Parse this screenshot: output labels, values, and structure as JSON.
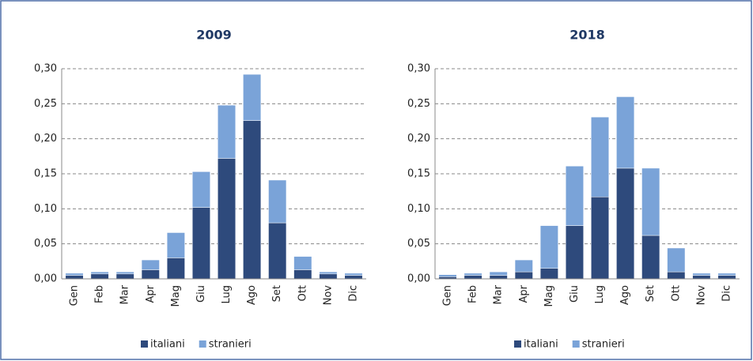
{
  "chart_data": [
    {
      "type": "stacked-bar",
      "title": "2009",
      "categories": [
        "Gen",
        "Feb",
        "Mar",
        "Apr",
        "Mag",
        "Giu",
        "Lug",
        "Ago",
        "Set",
        "Ott",
        "Nov",
        "Dic"
      ],
      "series": [
        {
          "name": "italiani",
          "color": "#2e4a7c",
          "values": [
            0.005,
            0.007,
            0.007,
            0.013,
            0.03,
            0.102,
            0.172,
            0.226,
            0.08,
            0.013,
            0.007,
            0.005
          ]
        },
        {
          "name": "stranieri",
          "color": "#7aa3d8",
          "values": [
            0.003,
            0.003,
            0.003,
            0.014,
            0.036,
            0.051,
            0.076,
            0.066,
            0.061,
            0.019,
            0.003,
            0.003
          ]
        }
      ],
      "ylim": [
        0,
        0.3
      ],
      "yticks": [
        {
          "value": 0,
          "label": "0,00"
        },
        {
          "value": 0.05,
          "label": "0,05"
        },
        {
          "value": 0.1,
          "label": "0,10"
        },
        {
          "value": 0.15,
          "label": "0,15"
        },
        {
          "value": 0.2,
          "label": "0,20"
        },
        {
          "value": 0.25,
          "label": "0,25"
        },
        {
          "value": 0.3,
          "label": "0,30"
        }
      ],
      "grid": true,
      "legend": "bottom"
    },
    {
      "type": "stacked-bar",
      "title": "2018",
      "categories": [
        "Gen",
        "Feb",
        "Mar",
        "Apr",
        "Mag",
        "Giu",
        "Lug",
        "Ago",
        "Set",
        "Ott",
        "Nov",
        "Dic"
      ],
      "series": [
        {
          "name": "italiani",
          "color": "#2e4a7c",
          "values": [
            0.003,
            0.005,
            0.005,
            0.01,
            0.015,
            0.076,
            0.117,
            0.158,
            0.062,
            0.01,
            0.005,
            0.005
          ]
        },
        {
          "name": "stranieri",
          "color": "#7aa3d8",
          "values": [
            0.003,
            0.003,
            0.005,
            0.017,
            0.061,
            0.085,
            0.114,
            0.102,
            0.096,
            0.034,
            0.003,
            0.003
          ]
        }
      ],
      "ylim": [
        0,
        0.3
      ],
      "yticks": [
        {
          "value": 0,
          "label": "0,00"
        },
        {
          "value": 0.05,
          "label": "0,05"
        },
        {
          "value": 0.1,
          "label": "0,10"
        },
        {
          "value": 0.15,
          "label": "0,15"
        },
        {
          "value": 0.2,
          "label": "0,20"
        },
        {
          "value": 0.25,
          "label": "0,25"
        },
        {
          "value": 0.3,
          "label": "0,30"
        }
      ],
      "grid": true,
      "legend": "bottom"
    }
  ]
}
